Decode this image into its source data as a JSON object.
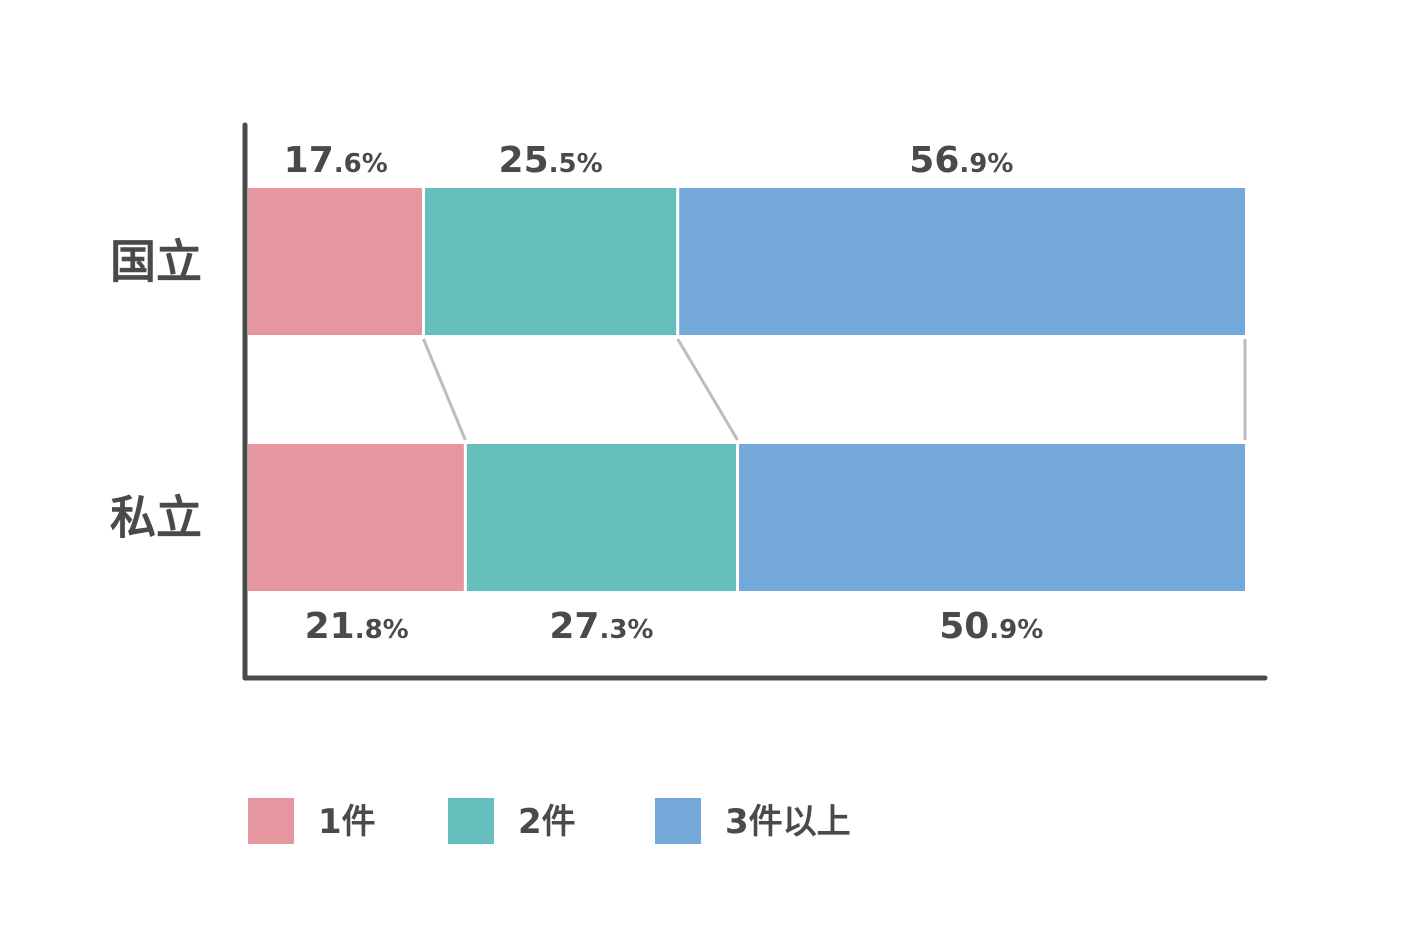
{
  "chart_data": {
    "type": "bar",
    "orientation": "horizontal",
    "stacked": true,
    "normalized": true,
    "unit": "%",
    "categories": [
      "国立",
      "私立"
    ],
    "series": [
      {
        "name": "1件",
        "values": [
          17.6,
          21.8
        ],
        "color": "#e6969f"
      },
      {
        "name": "2件",
        "values": [
          25.5,
          27.3
        ],
        "color": "#66bebd"
      },
      {
        "name": "3件以上",
        "values": [
          56.9,
          50.9
        ],
        "color": "#74a8d8"
      }
    ],
    "xlim": [
      0,
      100
    ],
    "title": "",
    "xlabel": "",
    "ylabel": "",
    "grid": false,
    "legend": "bottom",
    "connector_lines": true
  },
  "colors": {
    "axis": "#4a4a4a",
    "connector": "#bdbdbd",
    "text": "#4a4a4a"
  }
}
